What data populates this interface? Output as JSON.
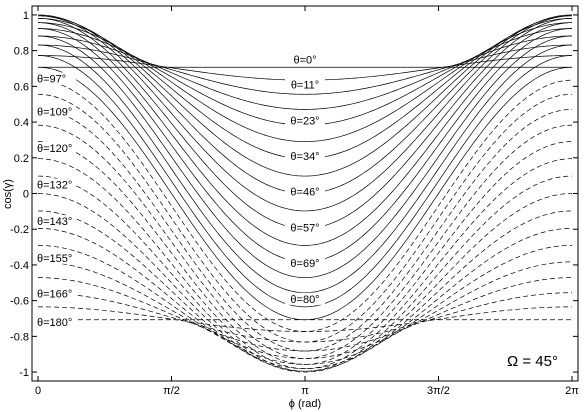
{
  "chart_data": {
    "type": "line",
    "xlabel": "ϕ (rad)",
    "ylabel": "cos(γ)",
    "annotation": "Ω = 45°",
    "omega_deg": 45,
    "xlim": [
      0,
      6.283185307
    ],
    "ylim": [
      -1.05,
      1.05
    ],
    "xticks": [
      {
        "value": 0,
        "label": "0"
      },
      {
        "value": 1.5707963,
        "label": "π/2"
      },
      {
        "value": 3.1415927,
        "label": "π"
      },
      {
        "value": 4.712389,
        "label": "3π/2"
      },
      {
        "value": 6.2831853,
        "label": "2π"
      }
    ],
    "yticks": [
      {
        "value": 1,
        "label": "1"
      },
      {
        "value": 0.8,
        "label": "0.8"
      },
      {
        "value": 0.6,
        "label": "0.6"
      },
      {
        "value": 0.4,
        "label": "0.4"
      },
      {
        "value": 0.2,
        "label": "0.2"
      },
      {
        "value": 0,
        "label": "0"
      },
      {
        "value": -0.2,
        "label": "-0.2"
      },
      {
        "value": -0.4,
        "label": "-0.4"
      },
      {
        "value": -0.6,
        "label": "-0.6"
      },
      {
        "value": -0.8,
        "label": "-0.8"
      },
      {
        "value": -1,
        "label": "-1"
      }
    ],
    "grid": false,
    "series": [
      {
        "theta_deg": 0,
        "style": "solid"
      },
      {
        "theta_deg": 5.6,
        "style": "solid"
      },
      {
        "theta_deg": 11.25,
        "style": "solid"
      },
      {
        "theta_deg": 16.9,
        "style": "solid"
      },
      {
        "theta_deg": 22.5,
        "style": "solid"
      },
      {
        "theta_deg": 28.1,
        "style": "solid"
      },
      {
        "theta_deg": 33.75,
        "style": "solid"
      },
      {
        "theta_deg": 39.4,
        "style": "solid"
      },
      {
        "theta_deg": 45,
        "style": "solid"
      },
      {
        "theta_deg": 50.6,
        "style": "solid"
      },
      {
        "theta_deg": 56.25,
        "style": "solid"
      },
      {
        "theta_deg": 61.9,
        "style": "solid"
      },
      {
        "theta_deg": 67.5,
        "style": "solid"
      },
      {
        "theta_deg": 73.1,
        "style": "solid"
      },
      {
        "theta_deg": 78.75,
        "style": "solid"
      },
      {
        "theta_deg": 84.4,
        "style": "solid"
      },
      {
        "theta_deg": 90,
        "style": "solid"
      },
      {
        "theta_deg": 95.6,
        "style": "dashed"
      },
      {
        "theta_deg": 101.25,
        "style": "dashed"
      },
      {
        "theta_deg": 106.9,
        "style": "dashed"
      },
      {
        "theta_deg": 112.5,
        "style": "dashed"
      },
      {
        "theta_deg": 118.1,
        "style": "dashed"
      },
      {
        "theta_deg": 123.75,
        "style": "dashed"
      },
      {
        "theta_deg": 129.4,
        "style": "dashed"
      },
      {
        "theta_deg": 135,
        "style": "dashed"
      },
      {
        "theta_deg": 140.6,
        "style": "dashed"
      },
      {
        "theta_deg": 146.25,
        "style": "dashed"
      },
      {
        "theta_deg": 151.9,
        "style": "dashed"
      },
      {
        "theta_deg": 157.5,
        "style": "dashed"
      },
      {
        "theta_deg": 163.1,
        "style": "dashed"
      },
      {
        "theta_deg": 168.75,
        "style": "dashed"
      },
      {
        "theta_deg": 174.4,
        "style": "dashed"
      },
      {
        "theta_deg": 180,
        "style": "dashed"
      }
    ],
    "center_labels": [
      {
        "text": "θ=0°",
        "y": 0.75
      },
      {
        "text": "θ=11°",
        "y": 0.61
      },
      {
        "text": "θ=23°",
        "y": 0.41
      },
      {
        "text": "θ=34°",
        "y": 0.21
      },
      {
        "text": "θ=46°",
        "y": 0.01
      },
      {
        "text": "θ=57°",
        "y": -0.19
      },
      {
        "text": "θ=69°",
        "y": -0.39
      },
      {
        "text": "θ=80°",
        "y": -0.59
      }
    ],
    "left_labels": [
      {
        "text": "θ=97°",
        "y": 0.645
      },
      {
        "text": "θ=109°",
        "y": 0.46
      },
      {
        "text": "θ=120°",
        "y": 0.255
      },
      {
        "text": "θ=132°",
        "y": 0.05
      },
      {
        "text": "θ=143°",
        "y": -0.155
      },
      {
        "text": "θ=155°",
        "y": -0.36
      },
      {
        "text": "θ=166°",
        "y": -0.56
      },
      {
        "text": "θ=180°",
        "y": -0.72
      }
    ]
  }
}
